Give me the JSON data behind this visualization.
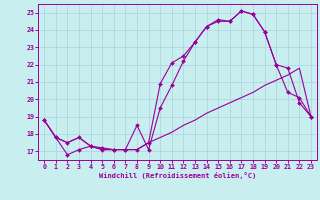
{
  "xlabel": "Windchill (Refroidissement éolien,°C)",
  "background_color": "#c8eef0",
  "grid_color": "#aad4d8",
  "line_color": "#990099",
  "xlim": [
    -0.5,
    23.5
  ],
  "ylim": [
    16.5,
    25.5
  ],
  "yticks": [
    17,
    18,
    19,
    20,
    21,
    22,
    23,
    24,
    25
  ],
  "xticks": [
    0,
    1,
    2,
    3,
    4,
    5,
    6,
    7,
    8,
    9,
    10,
    11,
    12,
    13,
    14,
    15,
    16,
    17,
    18,
    19,
    20,
    21,
    22,
    23
  ],
  "series1_x": [
    0,
    1,
    2,
    3,
    4,
    5,
    6,
    7,
    8,
    9,
    10,
    11,
    12,
    13,
    14,
    15,
    16,
    17,
    18,
    19,
    20,
    21,
    22,
    23
  ],
  "series1_y": [
    18.8,
    17.8,
    16.8,
    17.1,
    17.3,
    17.2,
    17.1,
    17.1,
    17.1,
    17.5,
    20.9,
    22.1,
    22.5,
    23.3,
    24.2,
    24.6,
    24.5,
    25.1,
    24.9,
    23.9,
    22.0,
    20.4,
    20.1,
    19.0
  ],
  "series2_x": [
    0,
    1,
    2,
    3,
    4,
    5,
    6,
    7,
    8,
    9,
    10,
    11,
    12,
    13,
    14,
    15,
    16,
    17,
    18,
    19,
    20,
    21,
    22,
    23
  ],
  "series2_y": [
    18.8,
    17.8,
    17.5,
    17.8,
    17.3,
    17.1,
    17.1,
    17.1,
    18.5,
    17.1,
    19.5,
    20.8,
    22.2,
    23.3,
    24.2,
    24.5,
    24.5,
    25.1,
    24.9,
    23.9,
    22.0,
    21.8,
    19.8,
    19.0
  ],
  "series3_x": [
    0,
    1,
    2,
    3,
    4,
    5,
    6,
    7,
    8,
    9,
    10,
    11,
    12,
    13,
    14,
    15,
    16,
    17,
    18,
    19,
    20,
    21,
    22,
    23
  ],
  "series3_y": [
    18.8,
    17.8,
    17.5,
    17.8,
    17.3,
    17.1,
    17.1,
    17.1,
    17.1,
    17.5,
    17.8,
    18.1,
    18.5,
    18.8,
    19.2,
    19.5,
    19.8,
    20.1,
    20.4,
    20.8,
    21.1,
    21.4,
    21.8,
    19.0
  ]
}
